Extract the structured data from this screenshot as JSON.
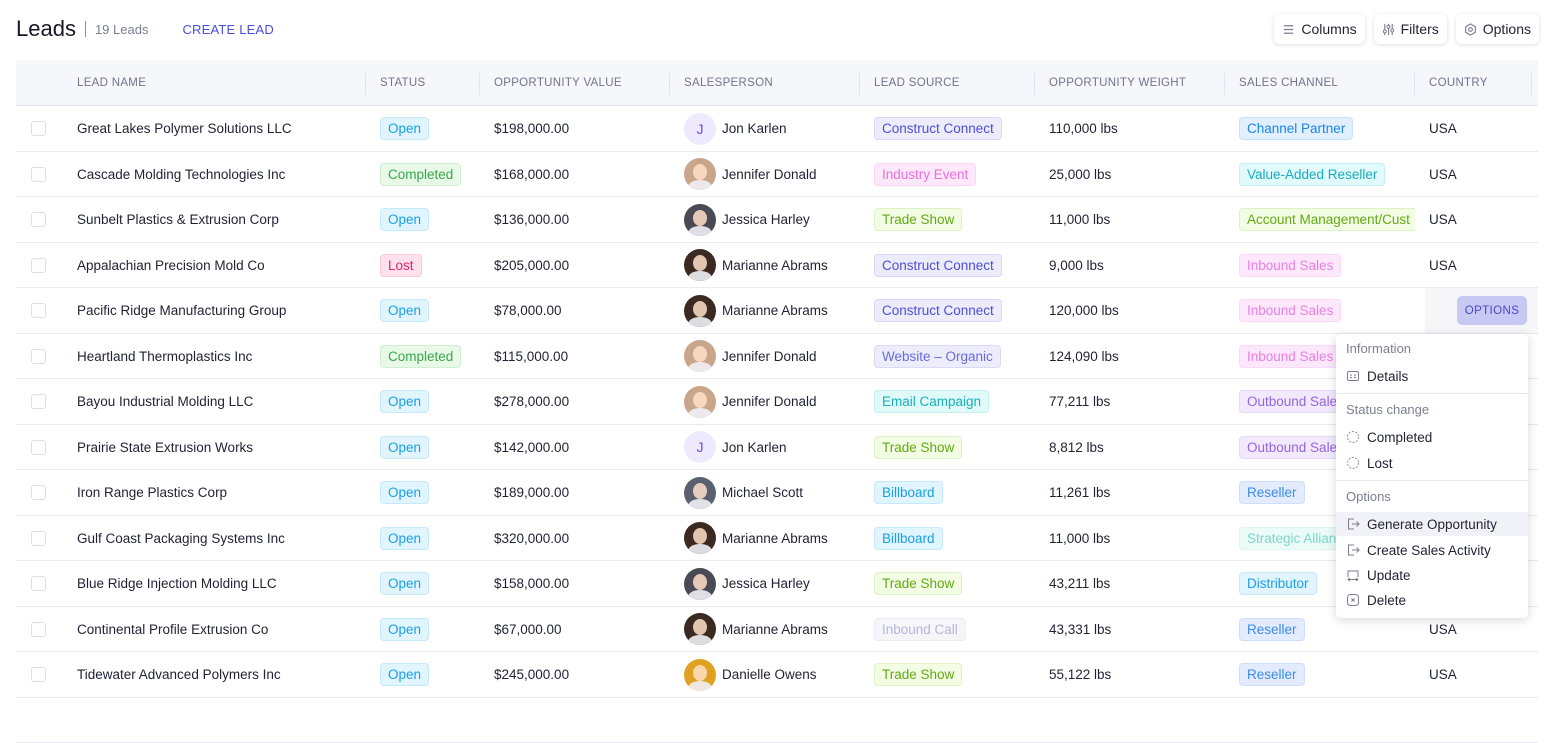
{
  "header": {
    "title": "Leads",
    "count": "19 Leads",
    "create_label": "CREATE LEAD"
  },
  "toolbar": {
    "columns_label": "Columns",
    "filters_label": "Filters",
    "options_label": "Options"
  },
  "columns": [
    "LEAD NAME",
    "STATUS",
    "OPPORTUNITY VALUE",
    "SALESPERSON",
    "LEAD SOURCE",
    "OPPORTUNITY WEIGHT",
    "SALES CHANNEL",
    "COUNTRY"
  ],
  "rows": [
    {
      "name": "Great Lakes Polymer Solutions LLC",
      "status": "Open",
      "value": "$198,000.00",
      "salesperson": "Jon Karlen",
      "initial": "J",
      "source": "Construct Connect",
      "weight": "110,000 lbs",
      "channel": "Channel Partner",
      "country": "USA"
    },
    {
      "name": "Cascade Molding Technologies Inc",
      "status": "Completed",
      "value": "$168,000.00",
      "salesperson": "Jennifer Donald",
      "source": "Industry Event",
      "weight": "25,000 lbs",
      "channel": "Value-Added Reseller",
      "country": "USA"
    },
    {
      "name": "Sunbelt Plastics & Extrusion Corp",
      "status": "Open",
      "value": "$136,000.00",
      "salesperson": "Jessica Harley",
      "source": "Trade Show",
      "weight": "11,000 lbs",
      "channel": "Account Management/Cust",
      "country": "USA"
    },
    {
      "name": "Appalachian Precision Mold Co",
      "status": "Lost",
      "value": "$205,000.00",
      "salesperson": "Marianne Abrams",
      "source": "Construct Connect",
      "weight": "9,000 lbs",
      "channel": "Inbound Sales",
      "country": "USA"
    },
    {
      "name": "Pacific Ridge Manufacturing Group",
      "status": "Open",
      "value": "$78,000.00",
      "salesperson": "Marianne Abrams",
      "source": "Construct Connect",
      "weight": "120,000 lbs",
      "channel": "Inbound Sales",
      "country": ""
    },
    {
      "name": "Heartland Thermoplastics Inc",
      "status": "Completed",
      "value": "$115,000.00",
      "salesperson": "Jennifer Donald",
      "source": "Website – Organic",
      "weight": "124,090 lbs",
      "channel": "Inbound Sales",
      "country": ""
    },
    {
      "name": "Bayou Industrial Molding LLC",
      "status": "Open",
      "value": "$278,000.00",
      "salesperson": "Jennifer Donald",
      "source": "Email Campaign",
      "weight": "77,211 lbs",
      "channel": "Outbound Sale",
      "country": ""
    },
    {
      "name": "Prairie State Extrusion Works",
      "status": "Open",
      "value": "$142,000.00",
      "salesperson": "Jon Karlen",
      "initial": "J",
      "source": "Trade Show",
      "weight": "8,812 lbs",
      "channel": "Outbound Sale",
      "country": ""
    },
    {
      "name": "Iron Range Plastics Corp",
      "status": "Open",
      "value": "$189,000.00",
      "salesperson": "Michael Scott",
      "source": "Billboard",
      "weight": "11,261 lbs",
      "channel": "Reseller",
      "country": ""
    },
    {
      "name": "Gulf Coast Packaging Systems Inc",
      "status": "Open",
      "value": "$320,000.00",
      "salesperson": "Marianne Abrams",
      "source": "Billboard",
      "weight": "11,000 lbs",
      "channel": "Strategic Allian",
      "country": ""
    },
    {
      "name": "Blue Ridge Injection Molding LLC",
      "status": "Open",
      "value": "$158,000.00",
      "salesperson": "Jessica Harley",
      "source": "Trade Show",
      "weight": "43,211 lbs",
      "channel": "Distributor",
      "country": ""
    },
    {
      "name": "Continental Profile Extrusion Co",
      "status": "Open",
      "value": "$67,000.00",
      "salesperson": "Marianne Abrams",
      "source": "Inbound Call",
      "weight": "43,331 lbs",
      "channel": "Reseller",
      "country": "USA"
    },
    {
      "name": "Tidewater Advanced Polymers Inc",
      "status": "Open",
      "value": "$245,000.00",
      "salesperson": "Danielle Owens",
      "source": "Trade Show",
      "weight": "55,122 lbs",
      "channel": "Reseller",
      "country": "USA"
    }
  ],
  "row_options_label": "OPTIONS",
  "menu": {
    "information_header": "Information",
    "details": "Details",
    "status_header": "Status change",
    "completed": "Completed",
    "lost": "Lost",
    "options_header": "Options",
    "generate": "Generate Opportunity",
    "create_activity": "Create Sales Activity",
    "update": "Update",
    "delete": "Delete"
  },
  "tag_colors": {
    "Open": [
      "#e1f5fe",
      "#1a9fe6"
    ],
    "Completed": [
      "#e8f9e8",
      "#3aa64a"
    ],
    "Lost": [
      "#ffe1ee",
      "#e0246a"
    ],
    "Construct Connect": [
      "#ececfb",
      "#4f4fd6"
    ],
    "Industry Event": [
      "#fde7fb",
      "#e670de"
    ],
    "Trade Show": [
      "#f3fde3",
      "#64a818"
    ],
    "Website – Organic": [
      "#ececfb",
      "#6a6ae0"
    ],
    "Email Campaign": [
      "#e0fafa",
      "#17b0bc"
    ],
    "Billboard": [
      "#e1f5fe",
      "#1a9fe6"
    ],
    "Inbound Call": [
      "#f6f6fa",
      "#b4b6d6"
    ],
    "Channel Partner": [
      "#e1effe",
      "#1a86e8"
    ],
    "Value-Added Reseller": [
      "#e1fafc",
      "#18acc0"
    ],
    "Account Management/Cust": [
      "#f3fde3",
      "#64a818"
    ],
    "Inbound Sales": [
      "#fde7fb",
      "#e880e6"
    ],
    "Outbound Sale": [
      "#f2e9fd",
      "#9466dc"
    ],
    "Reseller": [
      "#e3ecfe",
      "#3a8ce8"
    ],
    "Strategic Allian": [
      "#eafbf8",
      "#7fd6ca"
    ],
    "Distributor": [
      "#e1f5fe",
      "#1a9fe6"
    ]
  },
  "avatar_colors": {
    "Jennifer Donald": "#c9a58a",
    "Jessica Harley": "#4a4a55",
    "Marianne Abrams": "#3a2a22",
    "Michael Scott": "#5a6070",
    "Danielle Owens": "#e0a020"
  }
}
